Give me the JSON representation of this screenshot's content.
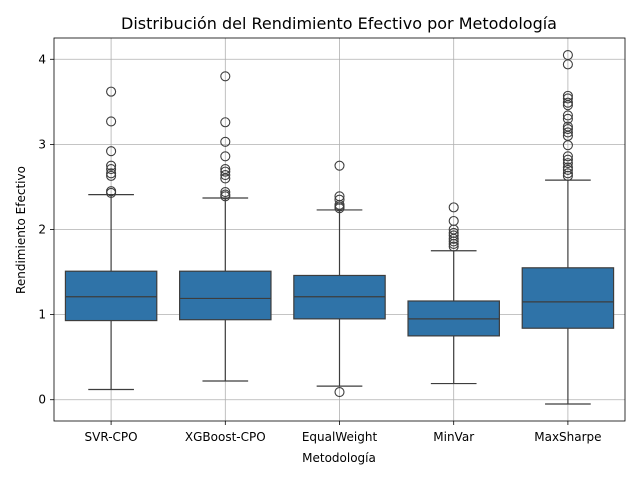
{
  "chart_data": {
    "type": "box",
    "title": "Distribución del Rendimiento Efectivo por Metodología",
    "xlabel": "Metodología",
    "ylabel": "Rendimiento Efectivo",
    "ylim": [
      -0.25,
      4.25
    ],
    "yticks": [
      0,
      1,
      2,
      3,
      4
    ],
    "grid": true,
    "box_color": "#2f73a8",
    "line_color": "#3d3d3d",
    "categories": [
      "SVR-CPO",
      "XGBoost-CPO",
      "EqualWeight",
      "MinVar",
      "MaxSharpe"
    ],
    "boxes": [
      {
        "q1": 0.93,
        "median": 1.21,
        "q3": 1.51,
        "whisker_low": 0.12,
        "whisker_high": 2.41,
        "outliers": [
          2.43,
          2.45,
          2.63,
          2.66,
          2.71,
          2.75,
          2.92,
          3.27,
          3.62
        ]
      },
      {
        "q1": 0.94,
        "median": 1.19,
        "q3": 1.51,
        "whisker_low": 0.22,
        "whisker_high": 2.37,
        "outliers": [
          2.39,
          2.41,
          2.44,
          2.6,
          2.64,
          2.68,
          2.71,
          2.86,
          3.03,
          3.26,
          3.8
        ]
      },
      {
        "q1": 0.95,
        "median": 1.21,
        "q3": 1.46,
        "whisker_low": 0.16,
        "whisker_high": 2.23,
        "outliers": [
          0.09,
          2.25,
          2.27,
          2.29,
          2.35,
          2.39,
          2.75
        ]
      },
      {
        "q1": 0.75,
        "median": 0.95,
        "q3": 1.16,
        "whisker_low": 0.19,
        "whisker_high": 1.75,
        "outliers": [
          1.8,
          1.83,
          1.86,
          1.89,
          1.93,
          1.96,
          2.0,
          2.1,
          2.26
        ]
      },
      {
        "q1": 0.84,
        "median": 1.15,
        "q3": 1.55,
        "whisker_low": -0.05,
        "whisker_high": 2.58,
        "outliers": [
          2.63,
          2.66,
          2.7,
          2.73,
          2.78,
          2.82,
          2.86,
          2.99,
          3.1,
          3.14,
          3.18,
          3.21,
          3.3,
          3.34,
          3.46,
          3.49,
          3.54,
          3.57,
          3.94,
          4.05
        ]
      }
    ]
  }
}
